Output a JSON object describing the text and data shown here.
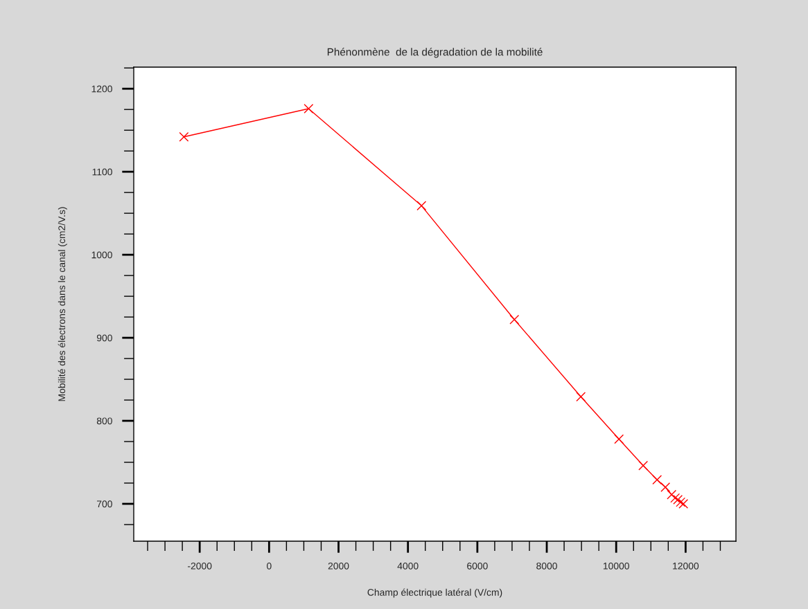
{
  "chart_data": {
    "type": "line",
    "title": "Phénonmène  de la dégradation de la mobilité",
    "xlabel": "Champ électrique latéral (V/cm)",
    "ylabel": "Mobilité des électrons dans le canal (cm2/V.s)",
    "x": [
      -2455,
      1138,
      4391,
      7066,
      8982,
      10080,
      10778,
      11178,
      11417,
      11597,
      11697,
      11776,
      11856,
      11936
    ],
    "series": [
      {
        "color": "#ff0000",
        "values": [
          1142,
          1176,
          1059,
          922,
          829,
          778,
          746,
          729,
          720,
          711,
          707,
          705,
          702,
          700
        ]
      }
    ],
    "marker": "cross",
    "line_style": "solid",
    "grid": false,
    "legend": false,
    "xlim": [
      -3900,
      13450
    ],
    "ylim": [
      655,
      1226
    ],
    "xticks": [
      -2000,
      0,
      2000,
      4000,
      6000,
      8000,
      10000,
      12000
    ],
    "yticks": [
      700,
      800,
      900,
      1000,
      1100,
      1200
    ]
  }
}
